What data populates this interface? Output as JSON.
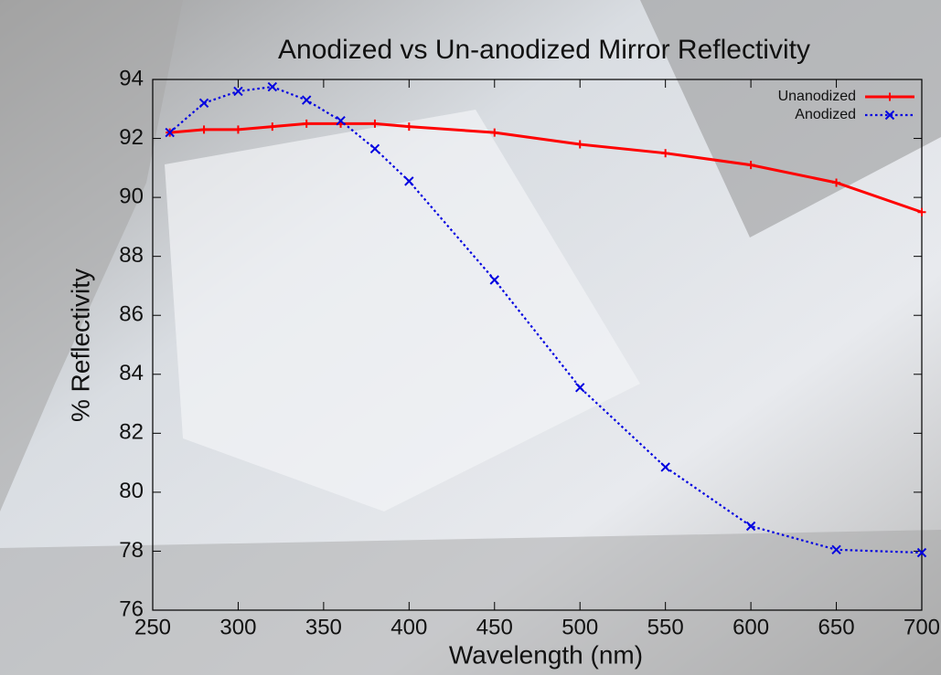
{
  "chart_data": {
    "type": "line",
    "title": "Anodized vs Un-anodized Mirror Reflectivity",
    "x_label": "Wavelength (nm)",
    "y_label": "% Reflectivity",
    "x": [
      260,
      280,
      300,
      320,
      340,
      360,
      380,
      400,
      450,
      500,
      550,
      600,
      650,
      700
    ],
    "series": [
      {
        "name": "Unanodized",
        "color": "#ff0000",
        "marker": "plus",
        "dash": "solid",
        "values": [
          92.2,
          92.3,
          92.3,
          92.4,
          92.5,
          92.5,
          92.5,
          92.4,
          92.2,
          91.8,
          91.5,
          91.1,
          90.5,
          89.5
        ]
      },
      {
        "name": "Anodized",
        "color": "#0000e0",
        "marker": "cross",
        "dash": "dotted",
        "values": [
          92.2,
          93.2,
          93.6,
          93.75,
          93.3,
          92.6,
          91.65,
          90.55,
          87.2,
          83.55,
          80.85,
          78.85,
          78.05,
          77.95
        ]
      }
    ],
    "xlim": [
      250,
      700
    ],
    "ylim": [
      76,
      94
    ],
    "xticks": [
      250,
      300,
      350,
      400,
      450,
      500,
      550,
      600,
      650,
      700
    ],
    "yticks": [
      76,
      78,
      80,
      82,
      84,
      86,
      88,
      90,
      92,
      94
    ],
    "legend": "top-right"
  }
}
